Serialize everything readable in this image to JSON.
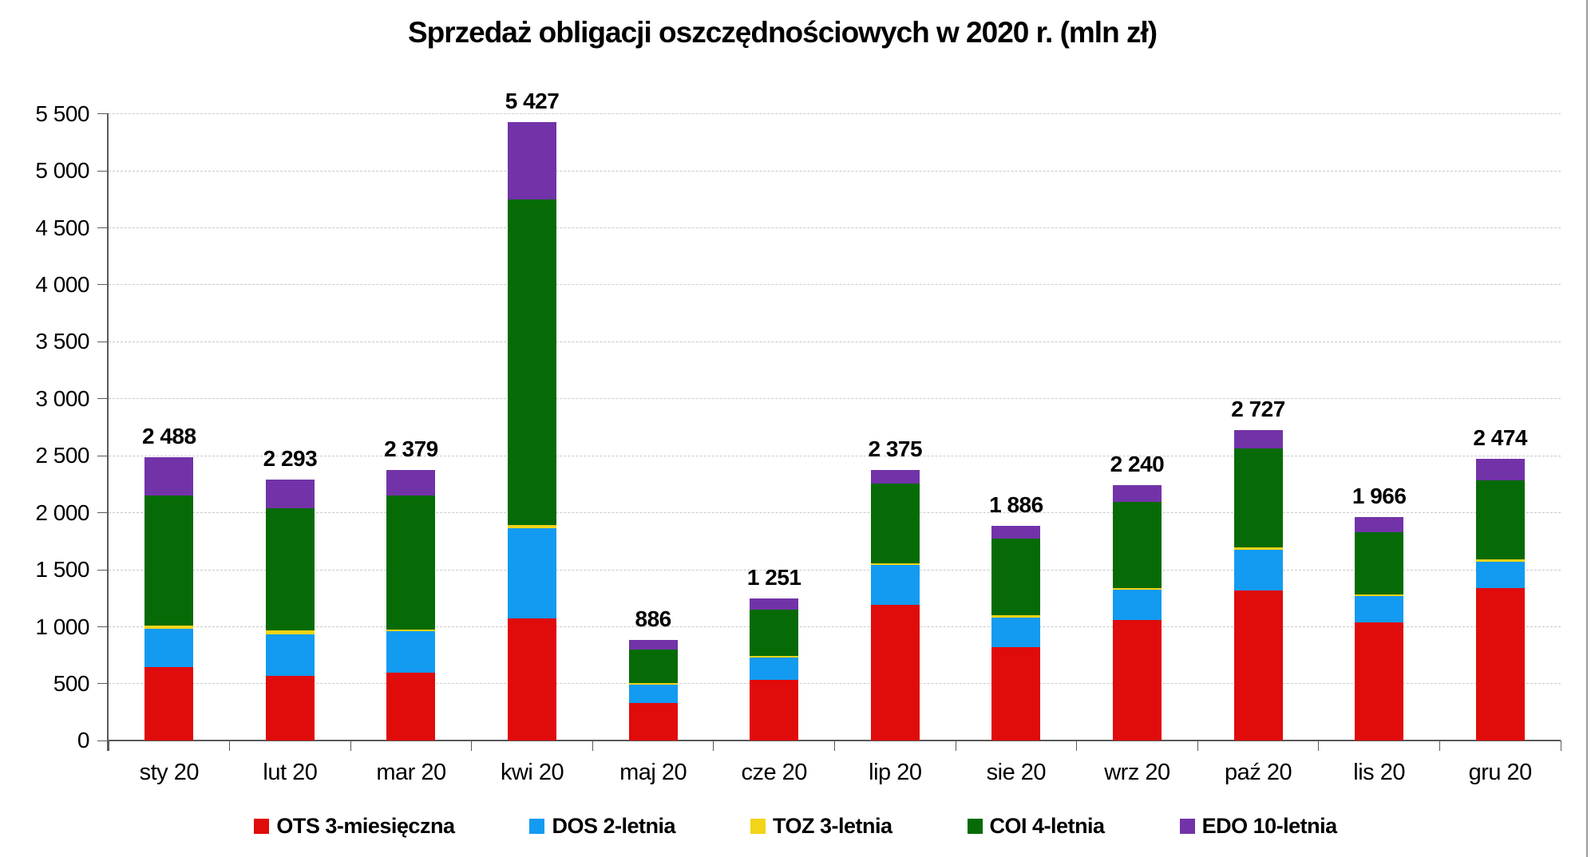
{
  "title": "Sprzedaż obligacji oszczędnościowych w 2020 r. (mln zł)",
  "chart_data": {
    "type": "bar",
    "stacked": true,
    "title": "Sprzedaż obligacji oszczędnościowych w 2020 r. (mln zł)",
    "categories": [
      "sty 20",
      "lut 20",
      "mar 20",
      "kwi 20",
      "maj 20",
      "cze 20",
      "lip 20",
      "sie 20",
      "wrz 20",
      "paź 20",
      "lis 20",
      "gru 20"
    ],
    "series": [
      {
        "name": "OTS 3-miesięczna",
        "color": "#e00b0b",
        "values": [
          650,
          570,
          600,
          1072,
          330,
          535,
          1190,
          820,
          1058,
          1322,
          1040,
          1343
        ]
      },
      {
        "name": "DOS 2-letnia",
        "color": "#129bf0",
        "values": [
          330,
          365,
          360,
          795,
          160,
          197,
          350,
          262,
          268,
          351,
          228,
          228
        ]
      },
      {
        "name": "TOZ 3-letnia",
        "color": "#f2d418",
        "values": [
          30,
          35,
          15,
          26,
          15,
          15,
          15,
          23,
          17,
          27,
          16,
          19
        ]
      },
      {
        "name": "COI 4-letnia",
        "color": "#066b06",
        "values": [
          1144,
          1072,
          1174,
          2859,
          297,
          405,
          704,
          671,
          753,
          867,
          543,
          692
        ]
      },
      {
        "name": "EDO 10-letnia",
        "color": "#7233a8",
        "values": [
          334,
          251,
          230,
          675,
          84,
          99,
          116,
          110,
          144,
          160,
          139,
          192
        ]
      }
    ],
    "totals": [
      2488,
      2293,
      2379,
      5427,
      886,
      1251,
      2375,
      1886,
      2240,
      2727,
      1966,
      2474
    ],
    "total_labels": [
      "2 488",
      "2 293",
      "2 379",
      "5 427",
      "886",
      "1 251",
      "2 375",
      "1 886",
      "2 240",
      "2 727",
      "1 966",
      "2 474"
    ],
    "y_axis": {
      "min": 0,
      "max": 5500,
      "step": 500,
      "tick_labels": [
        "0",
        "500",
        "1 000",
        "1 500",
        "2 000",
        "2 500",
        "3 000",
        "3 500",
        "4 000",
        "4 500",
        "5 000",
        "5 500"
      ]
    },
    "xlabel": "",
    "ylabel": "",
    "grid": "horizontal-dashed",
    "legend_position": "bottom"
  },
  "legend": {
    "items": [
      "OTS 3-miesięczna",
      "DOS 2-letnia",
      "TOZ 3-letnia",
      "COI 4-letnia",
      "EDO 10-letnia"
    ]
  },
  "colors": {
    "background": "#ffffff",
    "axis": "#595959",
    "gridline": "#c9c9c9",
    "text": "#000000",
    "ots_red": "#e00b0b",
    "dos_blue": "#129bf0",
    "toz_yellow": "#f2d418",
    "coi_green": "#066b06",
    "edo_purple": "#7233a8"
  }
}
